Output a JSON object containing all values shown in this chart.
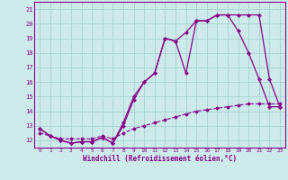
{
  "xlabel": "Windchill (Refroidissement éolien,°C)",
  "bg_color": "#cceaea",
  "grid_color": "#aad4d4",
  "line_color": "#880088",
  "xlim": [
    -0.5,
    23.5
  ],
  "ylim": [
    11.5,
    21.5
  ],
  "yticks": [
    12,
    13,
    14,
    15,
    16,
    17,
    18,
    19,
    20,
    21
  ],
  "xticks": [
    0,
    1,
    2,
    3,
    4,
    5,
    6,
    7,
    8,
    9,
    10,
    11,
    12,
    13,
    14,
    15,
    16,
    17,
    18,
    19,
    20,
    21,
    22,
    23
  ],
  "line1_x": [
    0,
    1,
    2,
    3,
    4,
    5,
    6,
    7,
    8,
    9,
    10,
    11,
    12,
    13,
    14,
    15,
    16,
    17,
    18,
    19,
    20,
    21,
    22,
    23
  ],
  "line1_y": [
    12.8,
    12.3,
    12.0,
    11.8,
    11.9,
    11.9,
    12.2,
    11.8,
    13.0,
    14.8,
    16.0,
    16.6,
    19.0,
    18.8,
    19.4,
    20.2,
    20.2,
    20.6,
    20.6,
    20.6,
    20.6,
    20.6,
    16.2,
    14.3
  ],
  "line2_x": [
    0,
    1,
    2,
    3,
    4,
    5,
    6,
    7,
    8,
    9,
    10,
    11,
    12,
    13,
    14,
    15,
    16,
    17,
    18,
    19,
    20,
    21,
    22,
    23
  ],
  "line2_y": [
    12.8,
    12.3,
    12.0,
    11.8,
    11.9,
    11.9,
    12.2,
    11.8,
    13.2,
    15.0,
    16.0,
    16.6,
    19.0,
    18.8,
    16.6,
    20.2,
    20.2,
    20.6,
    20.6,
    19.5,
    18.0,
    16.2,
    14.3,
    14.3
  ],
  "line3_x": [
    0,
    1,
    2,
    3,
    4,
    5,
    6,
    7,
    8,
    9,
    10,
    11,
    12,
    13,
    14,
    15,
    16,
    17,
    18,
    19,
    20,
    21,
    22,
    23
  ],
  "line3_y": [
    12.5,
    12.3,
    12.1,
    12.1,
    12.1,
    12.1,
    12.3,
    12.1,
    12.5,
    12.8,
    13.0,
    13.2,
    13.4,
    13.6,
    13.8,
    14.0,
    14.1,
    14.2,
    14.3,
    14.4,
    14.5,
    14.5,
    14.5,
    14.5
  ]
}
